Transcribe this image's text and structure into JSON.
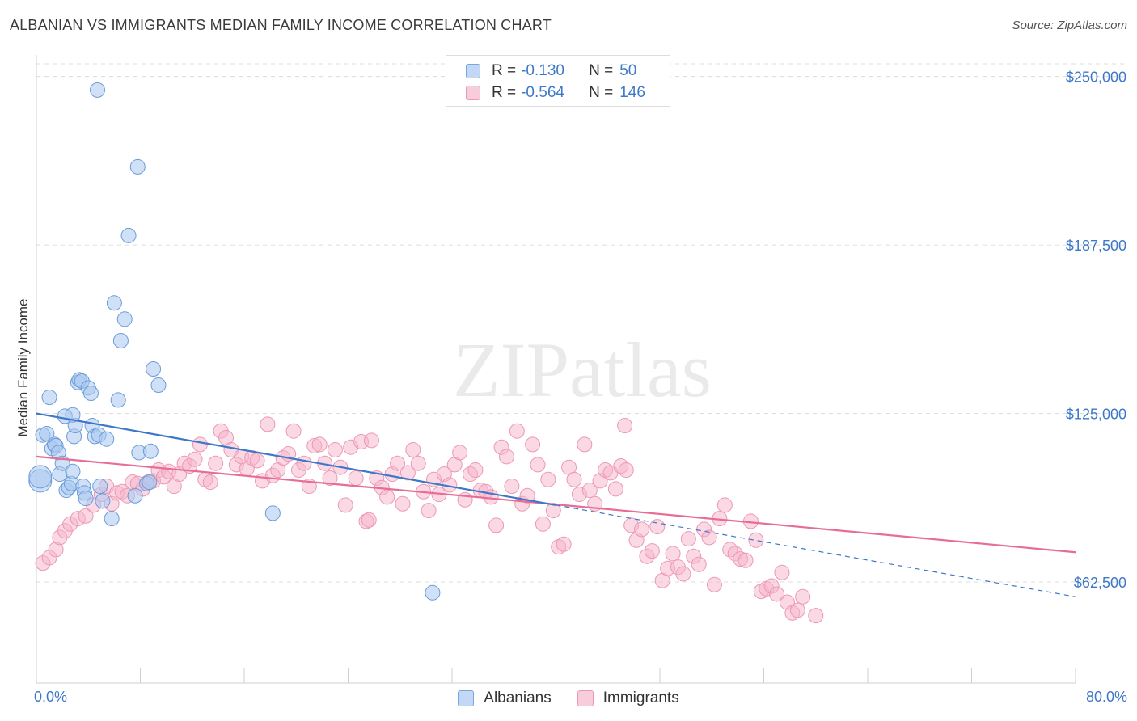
{
  "title": "ALBANIAN VS IMMIGRANTS MEDIAN FAMILY INCOME CORRELATION CHART",
  "source": "Source: ZipAtlas.com",
  "watermark": "ZIPatlas",
  "legend": {
    "rows": [
      {
        "r_label": "R =",
        "r_value": "-0.130",
        "n_label": "N =",
        "n_value": "50"
      },
      {
        "r_label": "R =",
        "r_value": "-0.564",
        "n_label": "N =",
        "n_value": "146"
      }
    ]
  },
  "bottom_legend": [
    "Albanians",
    "Immigrants"
  ],
  "x_axis": {
    "min_label": "0.0%",
    "max_label": "80.0%"
  },
  "y_axis": {
    "label": "Median Family Income",
    "tick_labels": [
      "$250,000",
      "$187,500",
      "$125,000",
      "$62,500"
    ]
  },
  "colors": {
    "blue": "#3d78c8",
    "blue_fill": "#a9c8f0",
    "pink": "#e86d96",
    "pink_fill": "#f5b3c9"
  },
  "chart_data": {
    "type": "scatter",
    "xlabel": "",
    "ylabel": "Median Family Income",
    "xlim": [
      0,
      80
    ],
    "ylim": [
      25000,
      258000
    ],
    "grid": true,
    "yticks": [
      250000,
      187500,
      125000,
      62500
    ],
    "series": [
      {
        "name": "Albanians",
        "color": "#3d78c8",
        "trend": {
          "x": [
            0,
            40
          ],
          "y": [
            125000,
            91000
          ],
          "dashed_to": [
            80,
            57000
          ]
        },
        "points": [
          [
            0.3,
            100000
          ],
          [
            0.3,
            101500
          ],
          [
            0.5,
            117000
          ],
          [
            0.8,
            117500
          ],
          [
            1.0,
            131000
          ],
          [
            1.2,
            112000
          ],
          [
            1.4,
            113500
          ],
          [
            1.5,
            113000
          ],
          [
            1.7,
            110500
          ],
          [
            1.8,
            102500
          ],
          [
            2.0,
            106500
          ],
          [
            2.2,
            124000
          ],
          [
            2.3,
            96500
          ],
          [
            2.5,
            97500
          ],
          [
            2.7,
            99000
          ],
          [
            2.8,
            103500
          ],
          [
            2.9,
            116500
          ],
          [
            3.0,
            120500
          ],
          [
            3.2,
            136500
          ],
          [
            3.3,
            137500
          ],
          [
            3.5,
            137000
          ],
          [
            3.6,
            98000
          ],
          [
            3.7,
            95500
          ],
          [
            3.8,
            93500
          ],
          [
            4.0,
            134500
          ],
          [
            4.2,
            132500
          ],
          [
            4.3,
            120500
          ],
          [
            4.5,
            116500
          ],
          [
            4.8,
            117000
          ],
          [
            4.9,
            98000
          ],
          [
            5.1,
            92500
          ],
          [
            5.4,
            115500
          ],
          [
            5.8,
            86000
          ],
          [
            6.0,
            166000
          ],
          [
            6.3,
            130000
          ],
          [
            6.5,
            152000
          ],
          [
            6.8,
            160000
          ],
          [
            7.1,
            191000
          ],
          [
            7.6,
            94500
          ],
          [
            7.8,
            216500
          ],
          [
            7.9,
            110500
          ],
          [
            8.5,
            99000
          ],
          [
            8.7,
            99500
          ],
          [
            8.8,
            111000
          ],
          [
            9.0,
            141500
          ],
          [
            9.4,
            135500
          ],
          [
            18.2,
            88000
          ],
          [
            30.5,
            58500
          ],
          [
            4.7,
            245000
          ],
          [
            2.8,
            124500
          ]
        ]
      },
      {
        "name": "Immigrants",
        "color": "#e86d96",
        "trend": {
          "x": [
            0,
            80
          ],
          "y": [
            109000,
            73500
          ]
        },
        "points": [
          [
            0.5,
            69500
          ],
          [
            1.0,
            71500
          ],
          [
            1.5,
            74500
          ],
          [
            1.8,
            79000
          ],
          [
            2.2,
            81500
          ],
          [
            2.6,
            84000
          ],
          [
            3.2,
            86000
          ],
          [
            3.8,
            87000
          ],
          [
            4.4,
            91000
          ],
          [
            5.0,
            95000
          ],
          [
            5.4,
            98000
          ],
          [
            5.8,
            91500
          ],
          [
            6.2,
            95500
          ],
          [
            6.6,
            96000
          ],
          [
            7.0,
            94500
          ],
          [
            7.4,
            99500
          ],
          [
            7.8,
            99000
          ],
          [
            8.2,
            97000
          ],
          [
            8.6,
            99500
          ],
          [
            9.0,
            100000
          ],
          [
            9.4,
            104000
          ],
          [
            9.8,
            101500
          ],
          [
            10.2,
            103500
          ],
          [
            10.6,
            98000
          ],
          [
            11.0,
            102500
          ],
          [
            11.4,
            106500
          ],
          [
            11.8,
            105500
          ],
          [
            12.2,
            108000
          ],
          [
            12.6,
            113500
          ],
          [
            13.0,
            100500
          ],
          [
            13.4,
            99500
          ],
          [
            13.8,
            106500
          ],
          [
            14.2,
            118500
          ],
          [
            14.6,
            116000
          ],
          [
            15.0,
            111500
          ],
          [
            15.4,
            106000
          ],
          [
            15.8,
            109000
          ],
          [
            16.2,
            104500
          ],
          [
            16.6,
            108500
          ],
          [
            17.0,
            107500
          ],
          [
            17.4,
            100000
          ],
          [
            17.8,
            121000
          ],
          [
            18.2,
            102000
          ],
          [
            18.6,
            104000
          ],
          [
            19.0,
            108500
          ],
          [
            19.4,
            110000
          ],
          [
            19.8,
            118500
          ],
          [
            20.2,
            104000
          ],
          [
            20.6,
            106500
          ],
          [
            21.0,
            98000
          ],
          [
            21.4,
            113000
          ],
          [
            21.8,
            113500
          ],
          [
            22.2,
            106500
          ],
          [
            22.6,
            101000
          ],
          [
            23.0,
            111500
          ],
          [
            23.4,
            105000
          ],
          [
            23.8,
            91000
          ],
          [
            24.2,
            112500
          ],
          [
            24.6,
            101000
          ],
          [
            25.0,
            114500
          ],
          [
            25.4,
            85000
          ],
          [
            25.8,
            115000
          ],
          [
            26.2,
            101000
          ],
          [
            26.6,
            97500
          ],
          [
            27.0,
            94000
          ],
          [
            27.4,
            102500
          ],
          [
            27.8,
            106500
          ],
          [
            28.2,
            91500
          ],
          [
            28.6,
            103000
          ],
          [
            29.0,
            111500
          ],
          [
            29.4,
            106500
          ],
          [
            29.8,
            96000
          ],
          [
            30.2,
            89000
          ],
          [
            30.6,
            100500
          ],
          [
            31.0,
            95000
          ],
          [
            31.4,
            102500
          ],
          [
            31.8,
            98500
          ],
          [
            32.2,
            106000
          ],
          [
            32.6,
            110500
          ],
          [
            33.0,
            93000
          ],
          [
            33.4,
            102500
          ],
          [
            33.8,
            104000
          ],
          [
            34.2,
            96500
          ],
          [
            34.6,
            96000
          ],
          [
            35.0,
            94000
          ],
          [
            35.4,
            83500
          ],
          [
            35.8,
            112500
          ],
          [
            36.2,
            109000
          ],
          [
            36.6,
            98000
          ],
          [
            37.0,
            118500
          ],
          [
            37.4,
            91500
          ],
          [
            37.8,
            94500
          ],
          [
            38.2,
            113500
          ],
          [
            38.6,
            106000
          ],
          [
            39.0,
            84000
          ],
          [
            39.4,
            100500
          ],
          [
            39.8,
            89000
          ],
          [
            40.2,
            75500
          ],
          [
            40.6,
            76500
          ],
          [
            41.0,
            105000
          ],
          [
            41.4,
            100500
          ],
          [
            41.8,
            95000
          ],
          [
            42.2,
            113500
          ],
          [
            42.6,
            96500
          ],
          [
            43.0,
            91500
          ],
          [
            43.4,
            100000
          ],
          [
            43.8,
            104000
          ],
          [
            44.2,
            103000
          ],
          [
            44.6,
            97000
          ],
          [
            45.0,
            105500
          ],
          [
            45.4,
            104000
          ],
          [
            45.8,
            83500
          ],
          [
            46.2,
            78000
          ],
          [
            46.6,
            82000
          ],
          [
            47.0,
            72000
          ],
          [
            47.4,
            74000
          ],
          [
            47.8,
            83000
          ],
          [
            48.2,
            63000
          ],
          [
            48.6,
            67500
          ],
          [
            49.0,
            73000
          ],
          [
            49.4,
            68000
          ],
          [
            49.8,
            65500
          ],
          [
            50.2,
            78500
          ],
          [
            50.6,
            72000
          ],
          [
            51.0,
            69000
          ],
          [
            51.4,
            82000
          ],
          [
            51.8,
            79000
          ],
          [
            52.2,
            61500
          ],
          [
            52.6,
            86000
          ],
          [
            53.0,
            91000
          ],
          [
            53.4,
            74500
          ],
          [
            53.8,
            73000
          ],
          [
            54.2,
            71000
          ],
          [
            54.6,
            70500
          ],
          [
            55.0,
            85000
          ],
          [
            55.4,
            78000
          ],
          [
            55.8,
            59000
          ],
          [
            56.2,
            60000
          ],
          [
            56.6,
            61000
          ],
          [
            57.0,
            58000
          ],
          [
            57.4,
            66000
          ],
          [
            57.8,
            55000
          ],
          [
            58.2,
            51000
          ],
          [
            58.6,
            52000
          ],
          [
            59.0,
            57000
          ],
          [
            60.0,
            50000
          ],
          [
            45.3,
            120500
          ],
          [
            25.6,
            85500
          ]
        ]
      }
    ]
  }
}
